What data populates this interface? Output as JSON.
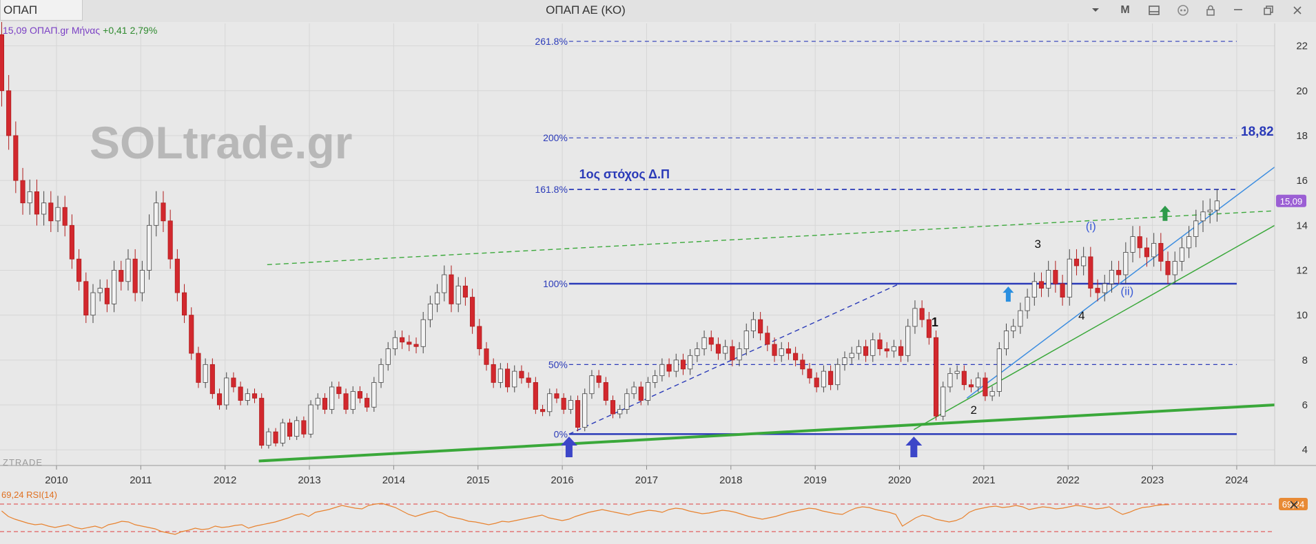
{
  "window": {
    "symbol_tab": "ΟΠΑΠ",
    "title": "ΟΠΑΠ ΑΕ (ΚΟ)",
    "controls": [
      {
        "name": "dropdown-icon"
      },
      {
        "name": "period-button",
        "label": "M"
      },
      {
        "name": "layout-icon"
      },
      {
        "name": "link-icon"
      },
      {
        "name": "lock-icon"
      },
      {
        "name": "minimize-icon"
      },
      {
        "name": "restore-icon"
      },
      {
        "name": "close-icon"
      }
    ]
  },
  "chart_data": {
    "type": "candlestick",
    "title": "",
    "info_line": {
      "price": "15,09",
      "source": "ΟΠΑΠ.gr",
      "period": "Μήνας",
      "change": "+0,41",
      "change_pct": "2,79%"
    },
    "watermark": "SOLtrade.gr",
    "brand": "ZTRADE",
    "x_ticks": [
      "2010",
      "2011",
      "2012",
      "2013",
      "2014",
      "2015",
      "2016",
      "2017",
      "2018",
      "2019",
      "2020",
      "2021",
      "2022",
      "2023",
      "2024"
    ],
    "y_ticks": [
      "22",
      "20",
      "18",
      "16",
      "14",
      "12",
      "10",
      "8",
      "6",
      "4"
    ],
    "ylim": [
      3.3,
      23.0
    ],
    "xlim": [
      2009.33,
      2024.45
    ],
    "last_price_label": "15,09",
    "fibonacci": [
      {
        "label": "261.8%",
        "value": 22.2,
        "style": "dashed"
      },
      {
        "label": "200%",
        "value": 17.9,
        "style": "dashed"
      },
      {
        "label": "161.8%",
        "value": 15.6,
        "style": "dashed-bold"
      },
      {
        "label": "100%",
        "value": 11.4,
        "style": "solid"
      },
      {
        "label": "50%",
        "value": 7.8,
        "style": "dashed"
      },
      {
        "label": "0%",
        "value": 4.7,
        "style": "solid"
      }
    ],
    "annotations": [
      {
        "text": "1ος στόχος Δ.Π",
        "x": 2016.2,
        "y": 16.1,
        "color": "#2a3ab8",
        "size": 18,
        "weight": "bold"
      },
      {
        "text": "18,82",
        "x": 2024.05,
        "y": 18.0,
        "color": "#2a3ab8",
        "size": 19,
        "weight": "bold"
      },
      {
        "text": "1",
        "x": 2020.42,
        "y": 9.5,
        "color": "#111",
        "size": 18,
        "weight": "bold"
      },
      {
        "text": "2",
        "x": 2020.88,
        "y": 5.6,
        "color": "#111",
        "size": 17,
        "weight": "normal"
      },
      {
        "text": "3",
        "x": 2021.64,
        "y": 13.0,
        "color": "#111",
        "size": 17,
        "weight": "normal"
      },
      {
        "text": "4",
        "x": 2022.16,
        "y": 9.8,
        "color": "#111",
        "size": 17,
        "weight": "normal"
      },
      {
        "text": "(i)",
        "x": 2022.27,
        "y": 13.8,
        "color": "#3b5bd6",
        "size": 17,
        "weight": "normal"
      },
      {
        "text": "(ii)",
        "x": 2022.7,
        "y": 10.9,
        "color": "#3b5bd6",
        "size": 17,
        "weight": "normal"
      }
    ],
    "arrows": [
      {
        "x": 2016.08,
        "color": "#3c46c8",
        "size": "large"
      },
      {
        "x": 2020.17,
        "color": "#3c46c8",
        "size": "large"
      },
      {
        "x": 2021.29,
        "y": 10.6,
        "color": "#2a8fe0",
        "size": "small"
      },
      {
        "x": 2023.15,
        "y": 14.2,
        "color": "#2e9a4a",
        "size": "small"
      }
    ],
    "trendlines": [
      {
        "name": "long-support",
        "color": "#3aa83a",
        "style": "solid-thick",
        "from": [
          2012.4,
          3.5
        ],
        "to": [
          2024.45,
          6.0
        ]
      },
      {
        "name": "upper-channel",
        "color": "#3aa83a",
        "style": "dashed",
        "from": [
          2012.5,
          12.25
        ],
        "to": [
          2024.45,
          14.65
        ]
      },
      {
        "name": "green-trend",
        "color": "#3aa83a",
        "style": "solid",
        "from": [
          2020.17,
          4.9
        ],
        "to": [
          2024.45,
          14.0
        ]
      },
      {
        "name": "blue-trend",
        "color": "#3c8de0",
        "style": "solid",
        "from": [
          2020.8,
          6.3
        ],
        "to": [
          2024.45,
          16.6
        ]
      },
      {
        "name": "fib-range",
        "color": "#2a3ab8",
        "style": "dashed",
        "from": [
          2016.08,
          4.7
        ],
        "to": [
          2020.0,
          11.4
        ]
      }
    ],
    "series": [
      {
        "name": "price",
        "candles": [
          [
            22.5,
            20.0
          ],
          [
            20.0,
            18.0
          ],
          [
            18.0,
            16.0
          ],
          [
            16.0,
            15.0
          ],
          [
            15.0,
            15.5
          ],
          [
            15.5,
            14.5
          ],
          [
            14.5,
            15.0
          ],
          [
            15.0,
            14.2
          ],
          [
            14.2,
            14.8
          ],
          [
            14.8,
            14.0
          ],
          [
            14.0,
            12.5
          ],
          [
            12.5,
            11.5
          ],
          [
            11.5,
            10.0
          ],
          [
            10.0,
            11.0
          ],
          [
            11.0,
            11.2
          ],
          [
            11.2,
            10.5
          ],
          [
            10.5,
            12.0
          ],
          [
            12.0,
            11.5
          ],
          [
            11.5,
            12.5
          ],
          [
            12.5,
            11.0
          ],
          [
            11.0,
            12.0
          ],
          [
            12.0,
            14.0
          ],
          [
            14.0,
            15.0
          ],
          [
            15.0,
            14.2
          ],
          [
            14.2,
            12.5
          ],
          [
            12.5,
            11.0
          ],
          [
            11.0,
            10.0
          ],
          [
            10.0,
            8.3
          ],
          [
            8.3,
            7.0
          ],
          [
            7.0,
            7.8
          ],
          [
            7.8,
            6.5
          ],
          [
            6.5,
            6.0
          ],
          [
            6.0,
            7.2
          ],
          [
            7.2,
            6.8
          ],
          [
            6.8,
            6.2
          ],
          [
            6.2,
            6.5
          ],
          [
            6.5,
            6.3
          ],
          [
            6.3,
            4.2
          ],
          [
            4.2,
            4.8
          ],
          [
            4.8,
            4.3
          ],
          [
            4.3,
            5.2
          ],
          [
            5.2,
            4.6
          ],
          [
            4.6,
            5.3
          ],
          [
            5.3,
            4.7
          ],
          [
            4.7,
            6.0
          ],
          [
            6.0,
            6.3
          ],
          [
            6.3,
            5.8
          ],
          [
            5.8,
            6.8
          ],
          [
            6.8,
            6.5
          ],
          [
            6.5,
            5.8
          ],
          [
            5.8,
            6.6
          ],
          [
            6.6,
            6.3
          ],
          [
            6.3,
            5.9
          ],
          [
            5.9,
            7.0
          ],
          [
            7.0,
            7.8
          ],
          [
            7.8,
            8.5
          ],
          [
            8.5,
            9.0
          ],
          [
            9.0,
            8.8
          ],
          [
            8.8,
            8.7
          ],
          [
            8.7,
            8.6
          ],
          [
            8.6,
            9.8
          ],
          [
            9.8,
            10.5
          ],
          [
            10.5,
            11.0
          ],
          [
            11.0,
            11.8
          ],
          [
            11.8,
            10.5
          ],
          [
            10.5,
            11.3
          ],
          [
            11.3,
            10.8
          ],
          [
            10.8,
            9.5
          ],
          [
            9.5,
            8.5
          ],
          [
            8.5,
            7.8
          ],
          [
            7.8,
            7.0
          ],
          [
            7.0,
            7.6
          ],
          [
            7.6,
            6.8
          ],
          [
            6.8,
            7.5
          ],
          [
            7.5,
            7.2
          ],
          [
            7.2,
            7.0
          ],
          [
            7.0,
            5.8
          ],
          [
            5.8,
            5.7
          ],
          [
            5.7,
            6.5
          ],
          [
            6.5,
            6.3
          ],
          [
            6.3,
            5.8
          ],
          [
            5.8,
            6.2
          ],
          [
            6.2,
            5.0
          ],
          [
            5.0,
            6.5
          ],
          [
            6.5,
            7.3
          ],
          [
            7.3,
            7.0
          ],
          [
            7.0,
            6.2
          ],
          [
            6.2,
            5.6
          ],
          [
            5.6,
            5.8
          ],
          [
            5.8,
            6.5
          ],
          [
            6.5,
            6.8
          ],
          [
            6.8,
            6.2
          ],
          [
            6.2,
            7.0
          ],
          [
            7.0,
            7.3
          ],
          [
            7.3,
            7.8
          ],
          [
            7.8,
            7.5
          ],
          [
            7.5,
            8.0
          ],
          [
            8.0,
            7.6
          ],
          [
            7.6,
            8.2
          ],
          [
            8.2,
            8.5
          ],
          [
            8.5,
            9.0
          ],
          [
            9.0,
            8.7
          ],
          [
            8.7,
            8.3
          ],
          [
            8.3,
            8.6
          ],
          [
            8.6,
            8.0
          ],
          [
            8.0,
            8.5
          ],
          [
            8.5,
            9.3
          ],
          [
            9.3,
            9.8
          ],
          [
            9.8,
            9.2
          ],
          [
            9.2,
            8.7
          ],
          [
            8.7,
            8.2
          ],
          [
            8.2,
            8.5
          ],
          [
            8.5,
            8.3
          ],
          [
            8.3,
            8.0
          ],
          [
            8.0,
            7.6
          ],
          [
            7.6,
            7.2
          ],
          [
            7.2,
            6.8
          ],
          [
            6.8,
            7.5
          ],
          [
            7.5,
            6.9
          ],
          [
            6.9,
            7.8
          ],
          [
            7.8,
            8.1
          ],
          [
            8.1,
            8.3
          ],
          [
            8.3,
            8.6
          ],
          [
            8.6,
            8.2
          ],
          [
            8.2,
            8.9
          ],
          [
            8.9,
            8.5
          ],
          [
            8.5,
            8.4
          ],
          [
            8.4,
            8.6
          ],
          [
            8.6,
            8.2
          ],
          [
            8.2,
            9.5
          ],
          [
            9.5,
            10.3
          ],
          [
            10.3,
            9.8
          ],
          [
            9.8,
            9.0
          ],
          [
            9.0,
            5.5
          ],
          [
            5.5,
            6.8
          ],
          [
            6.8,
            7.4
          ],
          [
            7.4,
            7.5
          ],
          [
            7.5,
            6.9
          ],
          [
            6.9,
            6.8
          ],
          [
            6.8,
            7.2
          ],
          [
            7.2,
            6.4
          ],
          [
            6.4,
            6.6
          ],
          [
            6.6,
            8.5
          ],
          [
            8.5,
            9.3
          ],
          [
            9.3,
            9.5
          ],
          [
            9.5,
            10.2
          ],
          [
            10.2,
            10.8
          ],
          [
            10.8,
            11.5
          ],
          [
            11.5,
            11.2
          ],
          [
            11.2,
            12.0
          ],
          [
            12.0,
            11.4
          ],
          [
            11.4,
            10.8
          ],
          [
            10.8,
            12.5
          ],
          [
            12.5,
            12.2
          ],
          [
            12.2,
            12.6
          ],
          [
            12.6,
            11.2
          ],
          [
            11.2,
            11.0
          ],
          [
            11.0,
            11.4
          ],
          [
            11.4,
            12.0
          ],
          [
            12.0,
            11.8
          ],
          [
            11.8,
            12.8
          ],
          [
            12.8,
            13.5
          ],
          [
            13.5,
            13.0
          ],
          [
            13.0,
            12.6
          ],
          [
            12.6,
            13.2
          ],
          [
            13.2,
            12.4
          ],
          [
            12.4,
            11.8
          ],
          [
            11.8,
            12.4
          ],
          [
            12.4,
            13.0
          ],
          [
            13.0,
            13.5
          ],
          [
            13.5,
            14.2
          ],
          [
            14.2,
            14.6
          ],
          [
            14.6,
            14.68
          ],
          [
            14.68,
            15.09
          ]
        ]
      }
    ],
    "rsi": {
      "label": "69,24 RSI(14)",
      "value_label": "69,24",
      "ylim": [
        20,
        90
      ],
      "upper": 70,
      "lower": 30,
      "values": [
        60,
        52,
        48,
        45,
        42,
        40,
        41,
        38,
        36,
        38,
        40,
        36,
        34,
        36,
        38,
        35,
        40,
        42,
        45,
        44,
        40,
        38,
        36,
        34,
        30,
        28,
        26,
        30,
        32,
        35,
        33,
        34,
        38,
        36,
        37,
        39,
        40,
        35,
        38,
        40,
        42,
        44,
        47,
        50,
        54,
        56,
        52,
        58,
        60,
        62,
        65,
        68,
        66,
        64,
        63,
        68,
        70,
        71,
        68,
        65,
        60,
        55,
        52,
        55,
        58,
        60,
        57,
        52,
        50,
        48,
        45,
        44,
        42,
        40,
        42,
        45,
        44,
        46,
        48,
        50,
        52,
        54,
        50,
        48,
        46,
        48,
        52,
        55,
        58,
        60,
        62,
        60,
        58,
        56,
        54,
        57,
        59,
        61,
        60,
        58,
        62,
        64,
        63,
        60,
        58,
        56,
        57,
        59,
        61,
        60,
        58,
        55,
        52,
        50,
        48,
        50,
        52,
        55,
        58,
        60,
        62,
        64,
        63,
        60,
        58,
        56,
        55,
        60,
        64,
        66,
        65,
        62,
        60,
        58,
        55,
        38,
        44,
        50,
        54,
        52,
        48,
        46,
        44,
        46,
        50,
        58,
        62,
        64,
        66,
        67,
        65,
        66,
        68,
        66,
        62,
        64,
        66,
        65,
        63,
        64,
        66,
        68,
        67,
        65,
        63,
        64,
        66,
        60,
        55,
        58,
        62,
        65,
        66,
        68,
        69,
        69.24
      ]
    }
  }
}
